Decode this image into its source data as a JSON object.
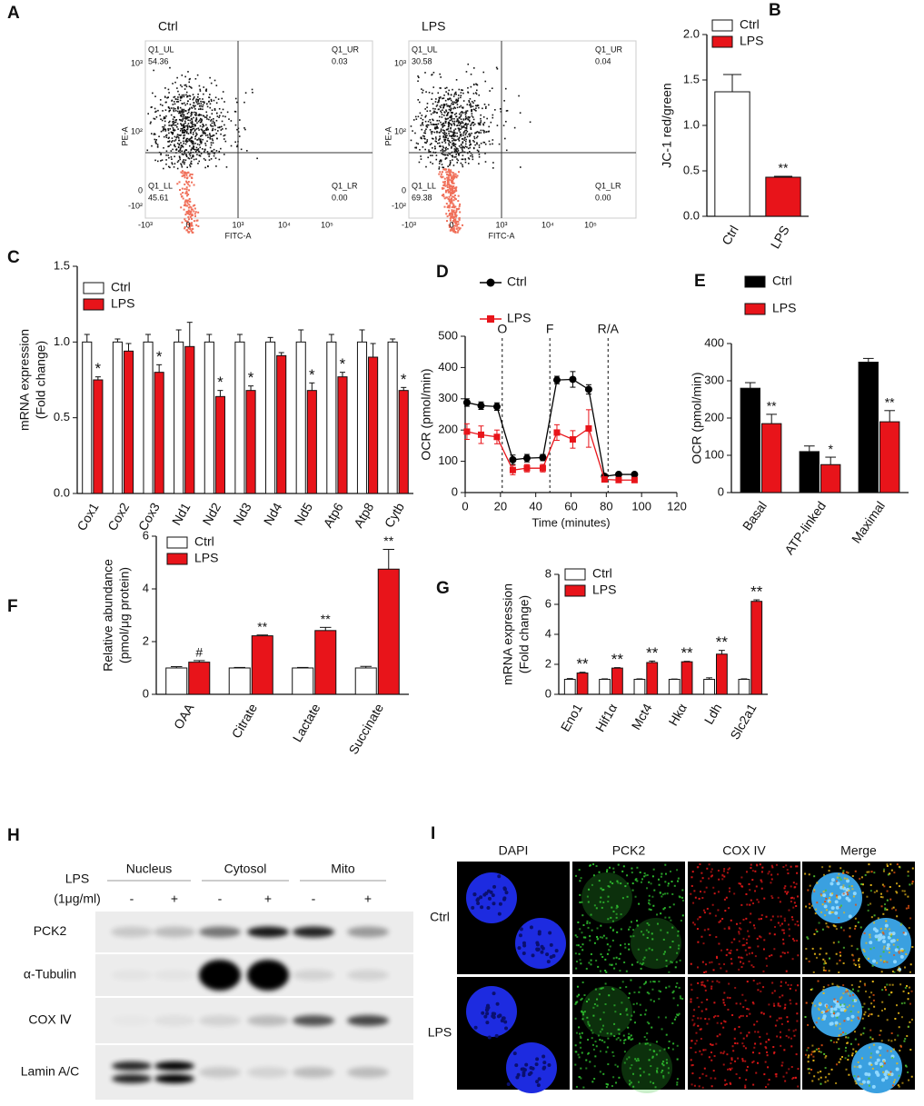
{
  "panels": [
    "A",
    "B",
    "C",
    "D",
    "E",
    "F",
    "G",
    "H",
    "I"
  ],
  "flow": {
    "xlabel": "FITC-A",
    "ylabel": "PE-A",
    "xticks": [
      "-10³",
      "0",
      "10³",
      "10⁴",
      "10⁵"
    ],
    "yticks": [
      "10³",
      "10²",
      "0",
      "-10²"
    ],
    "plots": [
      {
        "title": "Ctrl",
        "quadrants": [
          {
            "name": "Q1_UL",
            "value": "54.36"
          },
          {
            "name": "Q1_UR",
            "value": "0.03"
          },
          {
            "name": "Q1_LL",
            "value": "45.61"
          },
          {
            "name": "Q1_LR",
            "value": "0.00"
          }
        ]
      },
      {
        "title": "LPS",
        "quadrants": [
          {
            "name": "Q1_UL",
            "value": "30.58"
          },
          {
            "name": "Q1_UR",
            "value": "0.04"
          },
          {
            "name": "Q1_LL",
            "value": "69.38"
          },
          {
            "name": "Q1_LR",
            "value": "0.00"
          }
        ]
      }
    ]
  },
  "chart_data": [
    {
      "type": "bar",
      "ylabel": "JC-1  red/green",
      "legend": "upper left",
      "categories": [
        "Ctrl",
        "LPS"
      ],
      "ylim": [
        0,
        2
      ],
      "yticks": [
        {
          "value": 0,
          "label": "0.0"
        },
        {
          "value": 0.5,
          "label": "0.5"
        },
        {
          "value": 1,
          "label": "1.0"
        },
        {
          "value": 1.5,
          "label": "1.5"
        },
        {
          "value": 2,
          "label": "2.0"
        }
      ],
      "series": [
        {
          "name": "Ctrl",
          "color": "#ffffff",
          "values": [
            1.37,
            null
          ],
          "errors": [
            0.19,
            null
          ],
          "annotations": [
            null,
            null
          ]
        },
        {
          "name": "LPS",
          "color": "#e8141a",
          "values": [
            null,
            0.43
          ],
          "errors": [
            null,
            0.01
          ],
          "annotations": [
            null,
            "**"
          ]
        }
      ]
    },
    {
      "type": "bar",
      "ylabel": [
        "mRNA expression",
        "(Fold change)"
      ],
      "legend": "upper left",
      "categories": [
        "Cox1",
        "Cox2",
        "Cox3",
        "Nd1",
        "Nd2",
        "Nd3",
        "Nd4",
        "Nd5",
        "Atp6",
        "Atp8",
        "Cytb"
      ],
      "ylim": [
        0,
        1.5
      ],
      "yticks": [
        {
          "value": 0,
          "label": "0.0"
        },
        {
          "value": 0.5,
          "label": "0.5"
        },
        {
          "value": 1,
          "label": "1.0"
        },
        {
          "value": 1.5,
          "label": "1.5"
        }
      ],
      "series": [
        {
          "name": "Ctrl",
          "color": "#ffffff",
          "values": [
            1.0,
            1.0,
            1.0,
            1.0,
            1.0,
            1.0,
            1.0,
            1.0,
            1.0,
            1.0,
            1.0
          ],
          "errors": [
            0.05,
            0.02,
            0.05,
            0.08,
            0.05,
            0.05,
            0.03,
            0.08,
            0.05,
            0.08,
            0.02
          ],
          "annotations": [
            null,
            null,
            null,
            null,
            null,
            null,
            null,
            null,
            null,
            null,
            null
          ]
        },
        {
          "name": "LPS",
          "color": "#e8141a",
          "values": [
            0.75,
            0.94,
            0.8,
            0.97,
            0.64,
            0.68,
            0.91,
            0.68,
            0.77,
            0.9,
            0.68
          ],
          "errors": [
            0.02,
            0.05,
            0.05,
            0.16,
            0.04,
            0.03,
            0.02,
            0.05,
            0.03,
            0.09,
            0.02
          ],
          "annotations": [
            "*",
            null,
            "*",
            null,
            "*",
            "*",
            null,
            "*",
            "*",
            null,
            "*"
          ]
        }
      ]
    },
    {
      "type": "line",
      "xlabel": "Time (minutes)",
      "ylabel": "OCR (pmol/min)",
      "legend": "upper left",
      "x": [
        1,
        9,
        18,
        27,
        35,
        44,
        52,
        61,
        70,
        79,
        87,
        96
      ],
      "xlim": [
        0,
        120
      ],
      "xticks": [
        0,
        20,
        40,
        60,
        80,
        100,
        120
      ],
      "ylim": [
        0,
        500
      ],
      "yticks": [
        0,
        100,
        200,
        300,
        400,
        500
      ],
      "events": [
        {
          "x": 21,
          "label": "O"
        },
        {
          "x": 48,
          "label": "F"
        },
        {
          "x": 81,
          "label": "R/A"
        }
      ],
      "series": [
        {
          "name": "Ctrl",
          "color": "#000000",
          "marker": "circle",
          "values": [
            288,
            278,
            275,
            105,
            110,
            112,
            360,
            362,
            330,
            52,
            58,
            58
          ],
          "errors": [
            12,
            12,
            12,
            15,
            12,
            10,
            12,
            25,
            15,
            8,
            5,
            5
          ]
        },
        {
          "name": "LPS",
          "color": "#e8141a",
          "marker": "square",
          "values": [
            195,
            185,
            178,
            72,
            78,
            78,
            192,
            170,
            205,
            42,
            40,
            40
          ],
          "errors": [
            25,
            28,
            22,
            15,
            12,
            12,
            25,
            28,
            60,
            8,
            5,
            5
          ]
        }
      ]
    },
    {
      "type": "bar",
      "ylabel": "OCR (pmol/min)",
      "legend": "upper left",
      "categories": [
        "Basal",
        "ATP-linked",
        "Maximal"
      ],
      "ylim": [
        0,
        400
      ],
      "yticks": [
        0,
        100,
        200,
        300,
        400
      ],
      "series": [
        {
          "name": "Ctrl",
          "color": "#000000",
          "values": [
            280,
            110,
            350
          ],
          "errors": [
            15,
            15,
            10
          ],
          "annotations": [
            null,
            null,
            null
          ]
        },
        {
          "name": "LPS",
          "color": "#e8141a",
          "values": [
            185,
            75,
            190
          ],
          "errors": [
            25,
            20,
            30
          ],
          "annotations": [
            "**",
            "*",
            "**"
          ]
        }
      ]
    },
    {
      "type": "bar",
      "ylabel": [
        "Relative abundance",
        "(pmol/μg protein)"
      ],
      "legend": "upper left",
      "categories": [
        "OAA",
        "Citrate",
        "Lactate",
        "Succinate"
      ],
      "ylim": [
        0,
        6
      ],
      "yticks": [
        0,
        2,
        4,
        6
      ],
      "series": [
        {
          "name": "Ctrl",
          "color": "#ffffff",
          "values": [
            1.0,
            1.0,
            1.0,
            1.0
          ],
          "errors": [
            0.05,
            0.02,
            0.02,
            0.06
          ],
          "annotations": [
            null,
            null,
            null,
            null
          ]
        },
        {
          "name": "LPS",
          "color": "#e8141a",
          "values": [
            1.22,
            2.22,
            2.42,
            4.75
          ],
          "errors": [
            0.06,
            0.03,
            0.12,
            0.75
          ],
          "annotations": [
            "#",
            "**",
            "**",
            "**"
          ]
        }
      ]
    },
    {
      "type": "bar",
      "ylabel": [
        "mRNA expression",
        "(Fold change)"
      ],
      "legend": "upper left",
      "categories": [
        "Eno1",
        "Hif1α",
        "Mct4",
        "Hkα",
        "Ldh",
        "Slc2a1"
      ],
      "ylim": [
        0,
        8
      ],
      "yticks": [
        0,
        2,
        4,
        6,
        8
      ],
      "series": [
        {
          "name": "Ctrl",
          "color": "#ffffff",
          "values": [
            1.0,
            1.0,
            1.0,
            1.0,
            1.0,
            1.0
          ],
          "errors": [
            0.05,
            0.03,
            0.03,
            0.02,
            0.1,
            0.03
          ],
          "annotations": [
            null,
            null,
            null,
            null,
            null,
            null
          ]
        },
        {
          "name": "LPS",
          "color": "#e8141a",
          "values": [
            1.42,
            1.75,
            2.12,
            2.17,
            2.68,
            6.2
          ],
          "errors": [
            0.05,
            0.03,
            0.1,
            0.03,
            0.25,
            0.1
          ],
          "annotations": [
            "**",
            "**",
            "**",
            "**",
            "**",
            "**"
          ]
        }
      ]
    }
  ],
  "blot": {
    "groups": [
      "Nucleus",
      "Cytosol",
      "Mito"
    ],
    "treatment": [
      "LPS",
      "(1μg/ml)"
    ],
    "lanes": [
      "-",
      "+",
      "-",
      "+",
      "-",
      "+"
    ],
    "rows": [
      "PCK2",
      "α-Tubulin",
      "COX Ⅳ",
      "Lamin A/C"
    ]
  },
  "microscopy": {
    "columns": [
      "DAPI",
      "PCK2",
      "COX IV",
      "Merge"
    ],
    "rows": [
      "Ctrl",
      "LPS"
    ]
  }
}
